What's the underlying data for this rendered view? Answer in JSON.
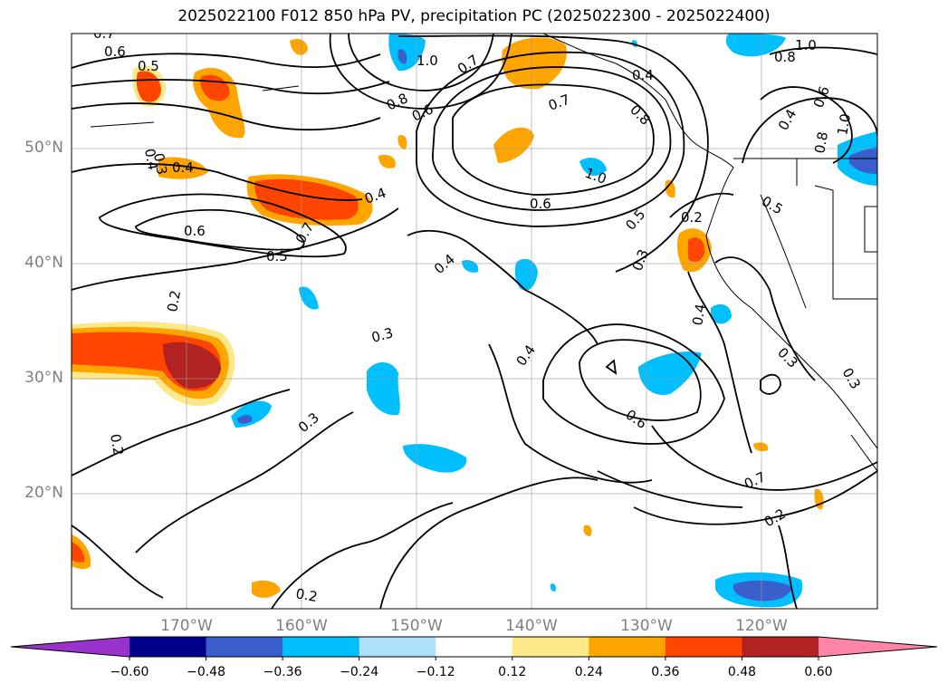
{
  "title": "2025022100 F012 850 hPa PV, precipitation PC (2025022300 - 2025022400)",
  "lat_labels": [
    "50°N",
    "40°N",
    "30°N",
    "20°N"
  ],
  "lon_labels": [
    "170°W",
    "160°W",
    "150°W",
    "140°W",
    "130°W",
    "120°W"
  ],
  "colorbar": {
    "ticks": [
      "−0.60",
      "−0.48",
      "−0.36",
      "−0.24",
      "−0.12",
      "0.12",
      "0.24",
      "0.36",
      "0.48",
      "0.60"
    ],
    "colors": [
      "#9932CC",
      "#00008B",
      "#3A5FCD",
      "#00BFFF",
      "#ADE0FA",
      "#FFFFFF",
      "#FFE88A",
      "#FFA500",
      "#FF4500",
      "#B22222",
      "#FF85A8"
    ]
  },
  "contour_labels": [
    "0.7",
    "0.6",
    "0.5",
    "0.4",
    "0.3",
    "0.6",
    "0.5",
    "0.2",
    "0.4",
    "0.7",
    "1.0",
    "0.8",
    "0.6",
    "0.7",
    "0.6",
    "0.4",
    "0.8",
    "0.7",
    "1.0",
    "0.5",
    "0.3",
    "0.2",
    "0.4",
    "0.3",
    "0.3",
    "0.4",
    "0.6",
    "0.7",
    "0.2",
    "0.3",
    "0.2",
    "1.0",
    "0.8",
    "0.6",
    "0.4",
    "1.0",
    "0.4",
    "0.8",
    "0.5",
    "0.3",
    "0.2",
    "0.4"
  ]
}
